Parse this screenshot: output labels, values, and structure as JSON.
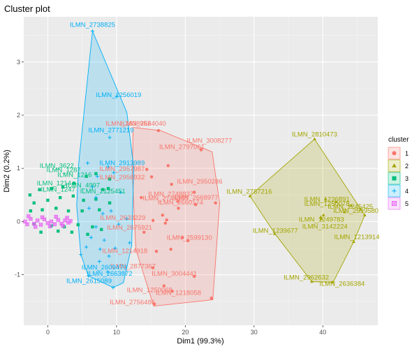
{
  "chart_data": {
    "type": "scatter",
    "title": "Cluster plot",
    "xlabel": "Dim1 (99.3%)",
    "ylabel": "Dim2 (0.2%)",
    "xlim": [
      -3.5,
      48
    ],
    "ylim": [
      -1.95,
      3.85
    ],
    "x_ticks": [
      0,
      10,
      20,
      30,
      40
    ],
    "y_ticks": [
      -1,
      0,
      1,
      2,
      3
    ],
    "grid": true,
    "legend_position": "right",
    "legend_title": "cluster",
    "series": [
      {
        "name": "1",
        "color": "#F8766D",
        "shape": "circle",
        "hull": [
          [
            12.4,
            1.77
          ],
          [
            16.4,
            1.71
          ],
          [
            23.9,
            1.31
          ],
          [
            25.0,
            0.35
          ],
          [
            24.0,
            -1.47
          ],
          [
            15.4,
            -1.59
          ],
          [
            12.8,
            -0.52
          ],
          [
            12.3,
            0.88
          ]
        ],
        "points": [
          [
            16.1,
            1.71
          ],
          [
            22.3,
            1.35
          ],
          [
            17.5,
            1.05
          ],
          [
            14.4,
            0.98
          ],
          [
            15.1,
            0.84
          ],
          [
            21.3,
            0.55
          ],
          [
            18.9,
            0.38
          ],
          [
            21.5,
            0.32
          ],
          [
            24.4,
            0.35
          ],
          [
            19.0,
            0.25
          ],
          [
            16.7,
            0.12
          ],
          [
            15.3,
            0.02
          ],
          [
            17.3,
            0.03
          ],
          [
            19.6,
            -0.3
          ],
          [
            17.1,
            -0.03
          ],
          [
            20.4,
            -0.36
          ],
          [
            17.9,
            -0.52
          ],
          [
            15.8,
            -0.56
          ],
          [
            15.3,
            -0.87
          ],
          [
            21.3,
            -1.03
          ],
          [
            16.9,
            -1.21
          ],
          [
            18.1,
            -1.31
          ],
          [
            23.8,
            -1.44
          ],
          [
            15.5,
            -1.55
          ],
          [
            14.0,
            -0.2
          ],
          [
            13.6,
            0.45
          ],
          [
            18.0,
            0.7
          ]
        ],
        "labels": [
          {
            "text": "ILMN_2638952",
            "x": 11.7,
            "y": 1.84
          },
          {
            "text": "ILMN_2664040",
            "x": 13.9,
            "y": 1.84
          },
          {
            "text": "ILMN_3008277",
            "x": 23.5,
            "y": 1.52
          },
          {
            "text": "ILMN_2797061",
            "x": 19.5,
            "y": 1.4
          },
          {
            "text": "ILMN_2957987",
            "x": 10.8,
            "y": 0.99
          },
          {
            "text": "ILMN_2956932",
            "x": 10.8,
            "y": 0.83
          },
          {
            "text": "ILMN_2950286",
            "x": 22.1,
            "y": 0.75
          },
          {
            "text": "ILMN_2748837",
            "x": 17.9,
            "y": 0.52
          },
          {
            "text": "ILMN_2748888",
            "x": 17.1,
            "y": 0.44
          },
          {
            "text": "ILMN_2668977",
            "x": 21.5,
            "y": 0.45
          },
          {
            "text": "ILMN_2660174",
            "x": 19.3,
            "y": 0.36
          },
          {
            "text": "ILMN_2633229",
            "x": 10.9,
            "y": 0.07
          },
          {
            "text": "ILMN_2675921",
            "x": 11.9,
            "y": -0.11
          },
          {
            "text": "ILMN_2599130",
            "x": 20.6,
            "y": -0.3
          },
          {
            "text": "ILMN_1214918",
            "x": 11.2,
            "y": -0.55
          },
          {
            "text": "ILMN_2877367",
            "x": 12.4,
            "y": -0.84
          },
          {
            "text": "ILMN_3004441",
            "x": 18.4,
            "y": -0.98
          },
          {
            "text": "ILMN_1250068",
            "x": 14.8,
            "y": -1.29
          },
          {
            "text": "ILMN_1218058",
            "x": 19.0,
            "y": -1.34
          },
          {
            "text": "ILMN_2756486",
            "x": 12.3,
            "y": -1.52
          }
        ]
      },
      {
        "name": "2",
        "color": "#A3A500",
        "shape": "triangle",
        "hull": [
          [
            38.8,
            1.55
          ],
          [
            46.1,
            0.12
          ],
          [
            44.5,
            -0.38
          ],
          [
            41.5,
            -1.14
          ],
          [
            38.4,
            -1.13
          ],
          [
            33.1,
            -0.24
          ],
          [
            29.4,
            0.48
          ]
        ],
        "points": [
          [
            38.8,
            1.55
          ],
          [
            29.4,
            0.48
          ],
          [
            40.4,
            0.42
          ],
          [
            41.9,
            0.37
          ],
          [
            44.1,
            0.3
          ],
          [
            45.5,
            0.23
          ],
          [
            46.1,
            0.12
          ],
          [
            40.1,
            0.12
          ],
          [
            39.8,
            0.05
          ],
          [
            33.0,
            -0.23
          ],
          [
            44.5,
            -0.38
          ],
          [
            38.4,
            -1.13
          ],
          [
            41.4,
            -1.14
          ],
          [
            39.7,
            0.08
          ],
          [
            43.2,
            0.18
          ]
        ],
        "labels": [
          {
            "text": "ILMN_2810473",
            "x": 38.8,
            "y": 1.64
          },
          {
            "text": "ILMN_2787216",
            "x": 29.3,
            "y": 0.56
          },
          {
            "text": "ILMN_1236891",
            "x": 40.6,
            "y": 0.42
          },
          {
            "text": "ILMN_1250078",
            "x": 40.6,
            "y": 0.33
          },
          {
            "text": "ILMN_1245425",
            "x": 44.0,
            "y": 0.28
          },
          {
            "text": "ILMN_2599580",
            "x": 44.8,
            "y": 0.2
          },
          {
            "text": "ILMN_1249783",
            "x": 39.8,
            "y": 0.04
          },
          {
            "text": "ILMN_3142224",
            "x": 40.3,
            "y": -0.09
          },
          {
            "text": "ILMN_1239677",
            "x": 33.1,
            "y": -0.17
          },
          {
            "text": "ILMN_1213914",
            "x": 46.7,
            "y": -0.29
          },
          {
            "text": "ILMN_2962632",
            "x": 37.6,
            "y": -1.05
          },
          {
            "text": "ILMN_2636384",
            "x": 42.8,
            "y": -1.17
          }
        ]
      },
      {
        "name": "3",
        "color": "#00BF7D",
        "shape": "square",
        "hull": [],
        "points": [
          [
            -2.6,
            0.5
          ],
          [
            -1.2,
            0.6
          ],
          [
            0.5,
            0.62
          ],
          [
            2.2,
            0.65
          ],
          [
            3.8,
            0.72
          ],
          [
            5.6,
            0.85
          ],
          [
            7.0,
            0.9
          ],
          [
            8.8,
            0.62
          ],
          [
            -2.0,
            0.35
          ],
          [
            0.0,
            0.4
          ],
          [
            1.8,
            0.45
          ],
          [
            3.7,
            0.48
          ],
          [
            5.2,
            0.4
          ],
          [
            7.0,
            0.42
          ],
          [
            9.0,
            0.35
          ],
          [
            -2.5,
            0.2
          ],
          [
            -0.8,
            0.22
          ],
          [
            1.2,
            0.25
          ],
          [
            3.0,
            0.2
          ],
          [
            5.0,
            0.2
          ],
          [
            7.5,
            0.22
          ],
          [
            -2.0,
            -0.05
          ],
          [
            0.5,
            -0.08
          ],
          [
            2.4,
            -0.1
          ],
          [
            4.4,
            -0.06
          ],
          [
            6.5,
            -0.1
          ],
          [
            -1.0,
            -0.2
          ],
          [
            1.5,
            -0.18
          ],
          [
            3.5,
            -0.2
          ],
          [
            5.8,
            -0.24
          ],
          [
            7.8,
            -0.15
          ],
          [
            9.0,
            0.8
          ],
          [
            8.0,
            0.6
          ]
        ],
        "labels": [
          {
            "text": "ILMN_3622",
            "x": 1.3,
            "y": 1.05
          },
          {
            "text": "ILMN_1287",
            "x": 2.3,
            "y": 0.97
          },
          {
            "text": "ILMN_1216",
            "x": 3.9,
            "y": 0.88
          },
          {
            "text": "ILMN_4997",
            "x": 5.1,
            "y": 0.68
          },
          {
            "text": "ILMN_1214",
            "x": 0.9,
            "y": 0.72
          },
          {
            "text": "ILMN_2125451",
            "x": 8.0,
            "y": 0.57
          },
          {
            "text": "ILMN_1247",
            "x": 1.5,
            "y": 0.6
          }
        ]
      },
      {
        "name": "4",
        "color": "#00B0F6",
        "shape": "plus",
        "hull": [
          [
            6.5,
            3.58
          ],
          [
            11.5,
            2.05
          ],
          [
            12.5,
            1.02
          ],
          [
            12.2,
            -0.45
          ],
          [
            11.0,
            -1.15
          ],
          [
            9.5,
            -1.24
          ],
          [
            5.9,
            -1.02
          ],
          [
            4.8,
            -0.62
          ],
          [
            4.2,
            0.3
          ],
          [
            4.5,
            1.1
          ]
        ],
        "points": [
          [
            6.5,
            3.58
          ],
          [
            10.0,
            2.35
          ],
          [
            9.0,
            1.58
          ],
          [
            8.8,
            1.03
          ],
          [
            9.6,
            0.92
          ],
          [
            10.6,
            0.55
          ],
          [
            9.2,
            0.2
          ],
          [
            10.3,
            -0.05
          ],
          [
            8.2,
            -0.35
          ],
          [
            9.8,
            -0.5
          ],
          [
            7.5,
            -0.75
          ],
          [
            8.7,
            -0.95
          ],
          [
            9.5,
            -1.24
          ],
          [
            5.9,
            -1.02
          ],
          [
            4.8,
            -0.62
          ],
          [
            5.8,
            1.1
          ],
          [
            7.2,
            0.85
          ],
          [
            6.5,
            0.65
          ],
          [
            7.0,
            0.45
          ],
          [
            6.0,
            0.25
          ],
          [
            8.0,
            0.15
          ],
          [
            7.0,
            -0.1
          ],
          [
            6.3,
            -0.3
          ],
          [
            5.6,
            -0.48
          ],
          [
            8.9,
            -0.65
          ],
          [
            7.6,
            -0.52
          ],
          [
            11.5,
            0.05
          ],
          [
            11.9,
            -0.4
          ]
        ],
        "labels": [
          {
            "text": "ILMN_2738825",
            "x": 6.5,
            "y": 3.7
          },
          {
            "text": "ILMN_1256019",
            "x": 10.3,
            "y": 2.38
          },
          {
            "text": "ILMN_2771219",
            "x": 9.2,
            "y": 1.72
          },
          {
            "text": "ILMN_2913989",
            "x": 10.8,
            "y": 1.1
          },
          {
            "text": "ILMN_2609470",
            "x": 8.2,
            "y": -0.86
          },
          {
            "text": "ILMN_2663872",
            "x": 9.0,
            "y": -0.98
          },
          {
            "text": "ILMN_2615089",
            "x": 6.0,
            "y": -1.12
          }
        ]
      },
      {
        "name": "5",
        "color": "#E76BF3",
        "shape": "boxx",
        "hull": [],
        "points": [
          [
            -3.3,
            0.0
          ],
          [
            -2.5,
            0.05
          ],
          [
            -1.5,
            0.02
          ],
          [
            -0.5,
            0.04
          ],
          [
            0.5,
            0.0
          ],
          [
            1.5,
            0.03
          ],
          [
            2.5,
            0.02
          ],
          [
            3.3,
            0.01
          ],
          [
            -3.0,
            -0.05
          ],
          [
            -2.0,
            -0.04
          ],
          [
            -1.0,
            -0.06
          ],
          [
            0.0,
            -0.03
          ],
          [
            1.0,
            -0.05
          ],
          [
            2.0,
            -0.04
          ],
          [
            3.0,
            -0.02
          ],
          [
            -2.8,
            0.1
          ],
          [
            -0.8,
            0.08
          ],
          [
            1.2,
            0.09
          ],
          [
            2.8,
            0.07
          ],
          [
            -1.8,
            -0.1
          ],
          [
            0.3,
            -0.09
          ],
          [
            2.2,
            -0.08
          ]
        ],
        "labels": []
      }
    ]
  }
}
